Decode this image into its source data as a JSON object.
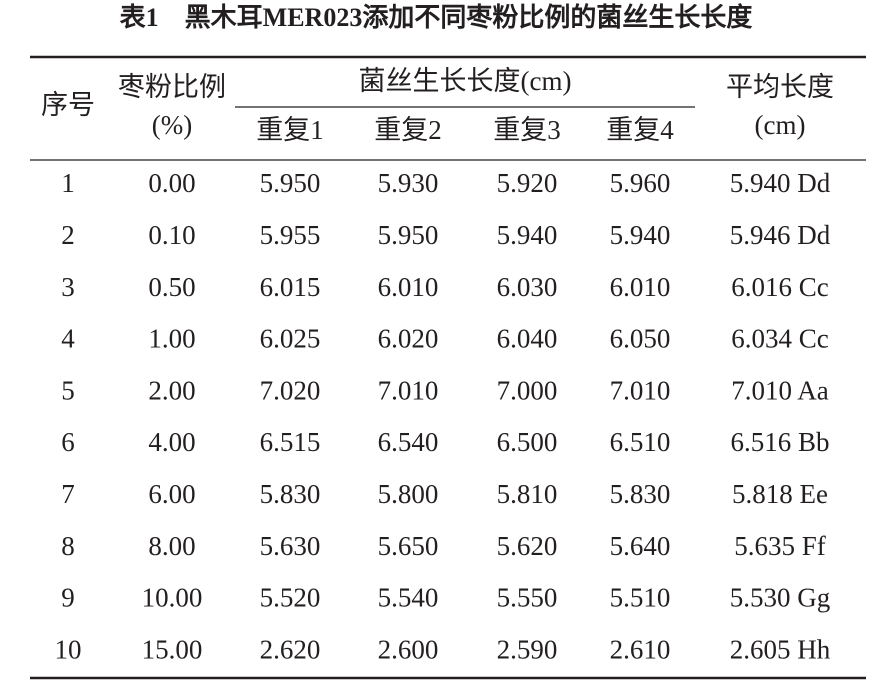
{
  "title": "表1　黑木耳MER023添加不同枣粉比例的菌丝生长长度",
  "table": {
    "header": {
      "index": "序号",
      "ratio": [
        "枣粉比例",
        "(%)"
      ],
      "group": "菌丝生长长度(cm)",
      "replicates": [
        "重复1",
        "重复2",
        "重复3",
        "重复4"
      ],
      "mean": [
        "平均长度",
        "(cm)"
      ]
    },
    "rows": [
      [
        "1",
        "0.00",
        "5.950",
        "5.930",
        "5.920",
        "5.960",
        "5.940 Dd"
      ],
      [
        "2",
        "0.10",
        "5.955",
        "5.950",
        "5.940",
        "5.940",
        "5.946 Dd"
      ],
      [
        "3",
        "0.50",
        "6.015",
        "6.010",
        "6.030",
        "6.010",
        "6.016 Cc"
      ],
      [
        "4",
        "1.00",
        "6.025",
        "6.020",
        "6.040",
        "6.050",
        "6.034 Cc"
      ],
      [
        "5",
        "2.00",
        "7.020",
        "7.010",
        "7.000",
        "7.010",
        "7.010 Aa"
      ],
      [
        "6",
        "4.00",
        "6.515",
        "6.540",
        "6.500",
        "6.510",
        "6.516 Bb"
      ],
      [
        "7",
        "6.00",
        "5.830",
        "5.800",
        "5.810",
        "5.830",
        "5.818 Ee"
      ],
      [
        "8",
        "8.00",
        "5.630",
        "5.650",
        "5.620",
        "5.640",
        "5.635 Ff"
      ],
      [
        "9",
        "10.00",
        "5.520",
        "5.540",
        "5.550",
        "5.510",
        "5.530 Gg"
      ],
      [
        "10",
        "15.00",
        "2.620",
        "2.600",
        "2.590",
        "2.610",
        "2.605 Hh"
      ]
    ]
  }
}
